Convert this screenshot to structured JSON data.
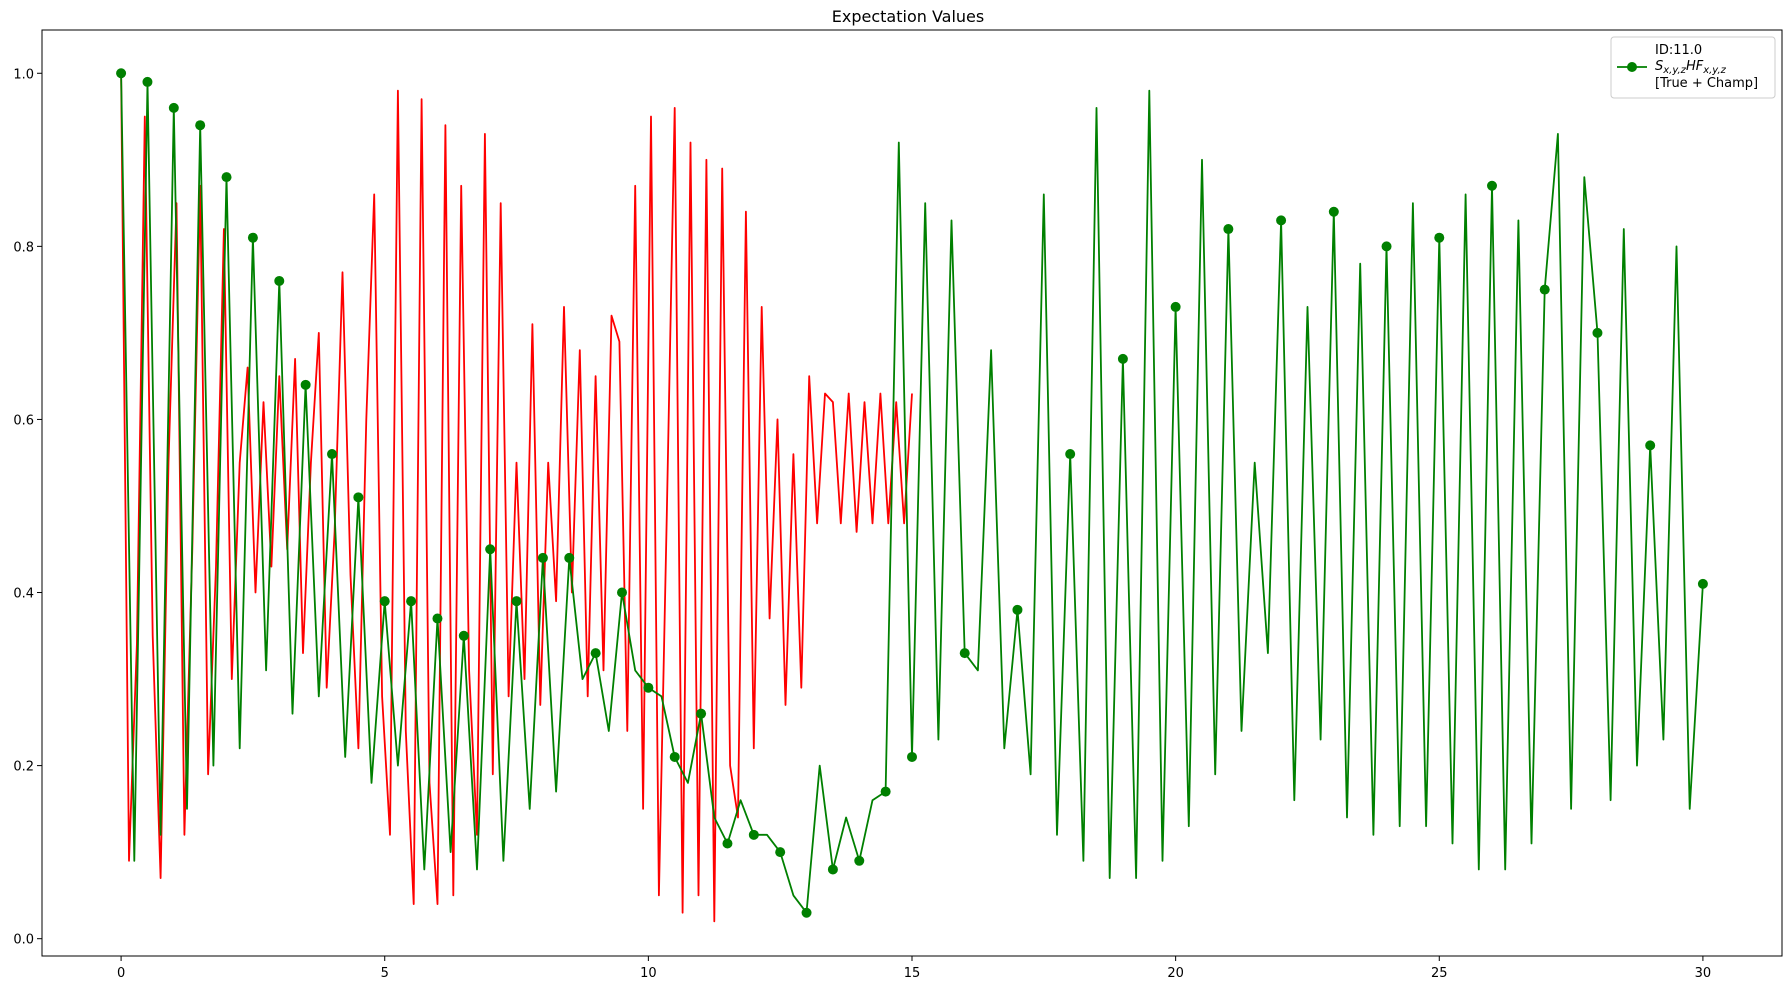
{
  "chart_data": {
    "type": "line",
    "title": "Expectation Values",
    "xlabel": "",
    "ylabel": "",
    "xlim": [
      -1.5,
      31.5
    ],
    "ylim": [
      -0.02,
      1.05
    ],
    "xticks": [
      0,
      5,
      10,
      15,
      20,
      25,
      30
    ],
    "yticks": [
      0.0,
      0.2,
      0.4,
      0.6,
      0.8,
      1.0
    ],
    "xtick_labels": [
      "0",
      "5",
      "10",
      "15",
      "20",
      "25",
      "30"
    ],
    "ytick_labels": [
      "0.0",
      "0.2",
      "0.4",
      "0.6",
      "0.8",
      "1.0"
    ],
    "grid": false,
    "legend": {
      "placement": "top-right",
      "lines": [
        "ID:11.0",
        "S",
        "x,y,z",
        "HF",
        "x,y,z",
        "[True + Champ]"
      ]
    },
    "series": [
      {
        "name": "",
        "role": "true",
        "color": "#ff0000",
        "marker": "none",
        "x": [
          0.0,
          0.15,
          0.3,
          0.45,
          0.6,
          0.75,
          0.9,
          1.05,
          1.2,
          1.35,
          1.5,
          1.65,
          1.8,
          1.95,
          2.1,
          2.25,
          2.4,
          2.55,
          2.7,
          2.85,
          3.0,
          3.15,
          3.3,
          3.45,
          3.6,
          3.75,
          3.9,
          4.05,
          4.2,
          4.35,
          4.5,
          4.65,
          4.8,
          4.95,
          5.1,
          5.25,
          5.4,
          5.55,
          5.7,
          5.85,
          6.0,
          6.15,
          6.3,
          6.45,
          6.6,
          6.75,
          6.9,
          7.05,
          7.2,
          7.35,
          7.5,
          7.65,
          7.8,
          7.95,
          8.1,
          8.25,
          8.4,
          8.55,
          8.7,
          8.85,
          9.0,
          9.15,
          9.3,
          9.45,
          9.6,
          9.75,
          9.9,
          10.05,
          10.2,
          10.35,
          10.5,
          10.65,
          10.8,
          10.95,
          11.1,
          11.25,
          11.4,
          11.55,
          11.7,
          11.85,
          12.0,
          12.15,
          12.3,
          12.45,
          12.6,
          12.75,
          12.9,
          13.05,
          13.2,
          13.35,
          13.5,
          13.65,
          13.8,
          13.95,
          14.1,
          14.25,
          14.4,
          14.55,
          14.7,
          14.85,
          15.0
        ],
        "y": [
          1.0,
          0.09,
          0.34,
          0.95,
          0.35,
          0.07,
          0.55,
          0.85,
          0.12,
          0.45,
          0.87,
          0.19,
          0.43,
          0.82,
          0.3,
          0.55,
          0.66,
          0.4,
          0.62,
          0.43,
          0.65,
          0.45,
          0.67,
          0.33,
          0.55,
          0.7,
          0.29,
          0.47,
          0.77,
          0.42,
          0.22,
          0.6,
          0.86,
          0.28,
          0.12,
          0.98,
          0.24,
          0.04,
          0.97,
          0.18,
          0.04,
          0.94,
          0.05,
          0.87,
          0.31,
          0.12,
          0.93,
          0.19,
          0.85,
          0.28,
          0.55,
          0.3,
          0.71,
          0.27,
          0.55,
          0.39,
          0.73,
          0.4,
          0.68,
          0.28,
          0.65,
          0.31,
          0.72,
          0.69,
          0.24,
          0.87,
          0.15,
          0.95,
          0.05,
          0.49,
          0.96,
          0.03,
          0.92,
          0.05,
          0.9,
          0.02,
          0.89,
          0.2,
          0.14,
          0.84,
          0.22,
          0.73,
          0.37,
          0.6,
          0.27,
          0.56,
          0.29,
          0.65,
          0.48,
          0.63,
          0.62,
          0.48,
          0.63,
          0.47,
          0.62,
          0.48,
          0.63,
          0.48,
          0.62,
          0.48,
          0.63
        ]
      },
      {
        "name": "",
        "role": "champion",
        "color": "#008000",
        "marker": "circle",
        "x": [
          0.0,
          0.25,
          0.5,
          0.75,
          1.0,
          1.25,
          1.5,
          1.75,
          2.0,
          2.25,
          2.5,
          2.75,
          3.0,
          3.25,
          3.5,
          3.75,
          4.0,
          4.25,
          4.5,
          4.75,
          5.0,
          5.25,
          5.5,
          5.75,
          6.0,
          6.25,
          6.5,
          6.75,
          7.0,
          7.25,
          7.5,
          7.75,
          8.0,
          8.25,
          8.5,
          8.75,
          9.0,
          9.25,
          9.5,
          9.75,
          10.0,
          10.25,
          10.5,
          10.75,
          11.0,
          11.25,
          11.5,
          11.75,
          12.0,
          12.25,
          12.5,
          12.75,
          13.0,
          13.25,
          13.5,
          13.75,
          14.0,
          14.25,
          14.5,
          14.75,
          15.0,
          15.25,
          15.5,
          15.75,
          16.0,
          16.25,
          16.5,
          16.75,
          17.0,
          17.25,
          17.5,
          17.75,
          18.0,
          18.25,
          18.5,
          18.75,
          19.0,
          19.25,
          19.5,
          19.75,
          20.0,
          20.25,
          20.5,
          20.75,
          21.0,
          21.25,
          21.5,
          21.75,
          22.0,
          22.25,
          22.5,
          22.75,
          23.0,
          23.25,
          23.5,
          23.75,
          24.0,
          24.25,
          24.5,
          24.75,
          25.0,
          25.25,
          25.5,
          25.75,
          26.0,
          26.25,
          26.5,
          26.75,
          27.0,
          27.25,
          27.5,
          27.75,
          28.0,
          28.25,
          28.5,
          28.75,
          29.0,
          29.25,
          29.5,
          29.75,
          30.0
        ],
        "y": [
          1.0,
          0.09,
          0.99,
          0.12,
          0.96,
          0.15,
          0.94,
          0.2,
          0.88,
          0.22,
          0.81,
          0.31,
          0.76,
          0.26,
          0.64,
          0.28,
          0.56,
          0.21,
          0.51,
          0.18,
          0.39,
          0.2,
          0.39,
          0.08,
          0.37,
          0.1,
          0.35,
          0.08,
          0.45,
          0.09,
          0.39,
          0.15,
          0.44,
          0.17,
          0.44,
          0.3,
          0.33,
          0.24,
          0.4,
          0.31,
          0.29,
          0.28,
          0.21,
          0.18,
          0.26,
          0.14,
          0.11,
          0.16,
          0.12,
          0.12,
          0.1,
          0.05,
          0.03,
          0.2,
          0.08,
          0.14,
          0.09,
          0.16,
          0.17,
          0.92,
          0.21,
          0.85,
          0.23,
          0.83,
          0.33,
          0.31,
          0.68,
          0.22,
          0.38,
          0.19,
          0.86,
          0.12,
          0.56,
          0.09,
          0.96,
          0.07,
          0.67,
          0.07,
          0.98,
          0.09,
          0.73,
          0.13,
          0.9,
          0.19,
          0.82,
          0.24,
          0.55,
          0.33,
          0.83,
          0.16,
          0.73,
          0.23,
          0.84,
          0.14,
          0.78,
          0.12,
          0.8,
          0.13,
          0.85,
          0.13,
          0.81,
          0.11,
          0.86,
          0.08,
          0.87,
          0.08,
          0.83,
          0.11,
          0.75,
          0.93,
          0.15,
          0.88,
          0.7,
          0.16,
          0.82,
          0.2,
          0.57,
          0.23,
          0.8,
          0.15,
          0.41
        ],
        "marker_x": [
          0,
          0.5,
          1,
          1.5,
          2,
          2.5,
          3,
          3.5,
          4,
          4.5,
          5,
          5.5,
          6,
          6.5,
          7,
          7.5,
          8,
          8.5,
          9,
          9.5,
          10,
          10.5,
          11,
          11.5,
          12,
          12.5,
          13,
          13.5,
          14,
          14.5,
          15,
          16,
          17,
          18,
          19,
          20,
          21,
          22,
          23,
          24,
          25,
          26,
          27,
          28,
          29,
          30
        ],
        "marker_y": [
          1.0,
          0.99,
          0.96,
          0.94,
          0.88,
          0.81,
          0.76,
          0.64,
          0.56,
          0.51,
          0.39,
          0.39,
          0.37,
          0.35,
          0.45,
          0.39,
          0.44,
          0.44,
          0.33,
          0.4,
          0.29,
          0.21,
          0.26,
          0.11,
          0.12,
          0.1,
          0.03,
          0.08,
          0.09,
          0.17,
          0.21,
          0.33,
          0.38,
          0.56,
          0.67,
          0.73,
          0.82,
          0.83,
          0.84,
          0.8,
          0.81,
          0.87,
          0.75,
          0.7,
          0.57,
          0.41
        ]
      }
    ]
  }
}
